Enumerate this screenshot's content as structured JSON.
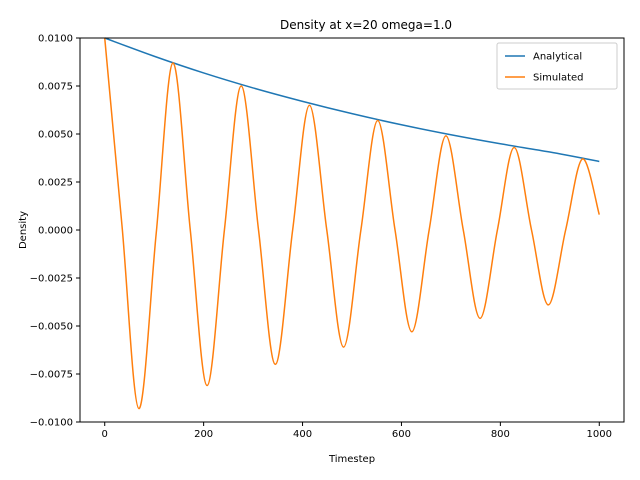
{
  "chart_data": {
    "type": "line",
    "title": "Density at x=20 omega=1.0",
    "xlabel": "Timestep",
    "ylabel": "Density",
    "xlim": [
      -50,
      1050
    ],
    "ylim": [
      -0.01,
      0.01
    ],
    "xticks": [
      0,
      200,
      400,
      600,
      800,
      1000
    ],
    "xtick_labels": [
      "0",
      "200",
      "400",
      "600",
      "800",
      "1000"
    ],
    "yticks": [
      -0.01,
      -0.0075,
      -0.005,
      -0.0025,
      0.0,
      0.0025,
      0.005,
      0.0075,
      0.01
    ],
    "ytick_labels": [
      "−0.0100",
      "−0.0075",
      "−0.0050",
      "−0.0025",
      "0.0000",
      "0.0025",
      "0.0050",
      "0.0075",
      "0.0100"
    ],
    "grid": false,
    "legend_position": "top-right",
    "series": [
      {
        "name": "Analytical",
        "color": "#1f77b4",
        "x": [
          0,
          100,
          200,
          300,
          400,
          500,
          600,
          700,
          800,
          900,
          1000
        ],
        "y": [
          0.01,
          0.00905,
          0.00818,
          0.0074,
          0.0067,
          0.00606,
          0.00548,
          0.00496,
          0.00449,
          0.00406,
          0.00357
        ]
      },
      {
        "name": "Simulated",
        "color": "#ff7f0e",
        "x": [
          0,
          35,
          69,
          104,
          138,
          173,
          207,
          242,
          276,
          311,
          345,
          380,
          414,
          449,
          483,
          518,
          552,
          587,
          621,
          656,
          690,
          725,
          759,
          794,
          828,
          863,
          897,
          932,
          966,
          1000
        ],
        "y": [
          0.01,
          0.0002,
          -0.0093,
          -0.0002,
          0.0087,
          0.0,
          -0.0081,
          0.0,
          0.0075,
          0.0,
          -0.007,
          0.0,
          0.0065,
          0.0,
          -0.0061,
          0.0,
          0.0057,
          0.0,
          -0.0053,
          0.0,
          0.0049,
          0.0,
          -0.0046,
          0.0,
          0.0043,
          0.0,
          -0.0039,
          0.0,
          0.0037,
          0.0008
        ]
      }
    ]
  }
}
